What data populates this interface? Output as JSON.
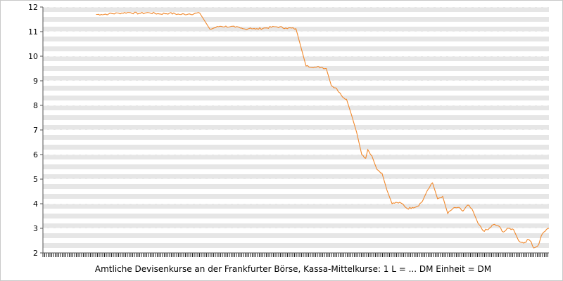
{
  "chart_data": {
    "type": "line",
    "caption": "Amtliche Devisenkurse an der Frankfurter Börse, Kassa-Mittelkurse: 1 L = ... DM Einheit = DM",
    "ylim": [
      2,
      12
    ],
    "yticks": [
      2,
      3,
      4,
      5,
      6,
      7,
      8,
      9,
      10,
      11,
      12
    ],
    "grid": true,
    "legend": "none",
    "line_color": "#f0882c",
    "x_index_range": [
      0,
      100
    ],
    "series": [
      {
        "x": [
          10.5,
          11.5,
          13,
          15,
          17,
          19,
          21,
          23,
          25,
          27,
          29,
          31,
          33,
          35,
          37,
          38,
          39,
          39.5,
          40,
          41,
          42,
          44,
          46,
          48,
          50,
          52,
          54,
          55,
          56,
          57,
          58,
          59,
          60,
          61,
          62,
          63,
          63.8,
          64.2,
          65,
          66,
          67,
          68,
          69,
          70,
          71,
          72,
          73,
          74,
          75,
          76,
          77,
          78,
          79,
          80,
          81,
          82,
          83,
          84,
          85,
          86,
          87,
          88,
          89,
          90,
          91,
          92,
          93,
          94,
          95,
          96,
          96.5,
          97,
          97.5,
          98,
          98.5,
          99,
          99.5,
          100
        ],
        "values": [
          11.7,
          11.7,
          11.72,
          11.75,
          11.78,
          11.74,
          11.77,
          11.72,
          11.75,
          11.7,
          11.72,
          11.75,
          11.1,
          11.22,
          11.2,
          11.18,
          11.15,
          11.12,
          11.1,
          11.15,
          11.1,
          11.15,
          11.2,
          11.15,
          11.12,
          9.6,
          9.55,
          9.55,
          9.5,
          8.8,
          8.7,
          8.4,
          8.25,
          7.6,
          6.9,
          6.0,
          5.85,
          6.2,
          5.95,
          5.4,
          5.25,
          4.55,
          4.0,
          4.05,
          4.0,
          3.8,
          3.85,
          3.9,
          4.1,
          4.55,
          4.85,
          4.2,
          4.3,
          3.6,
          3.8,
          3.85,
          3.7,
          3.95,
          3.7,
          3.2,
          2.9,
          2.95,
          3.15,
          3.1,
          2.85,
          3.0,
          2.95,
          2.5,
          2.4,
          2.55,
          2.45,
          2.2,
          2.25,
          2.35,
          2.7,
          2.85,
          2.95,
          3.0
        ]
      }
    ]
  }
}
